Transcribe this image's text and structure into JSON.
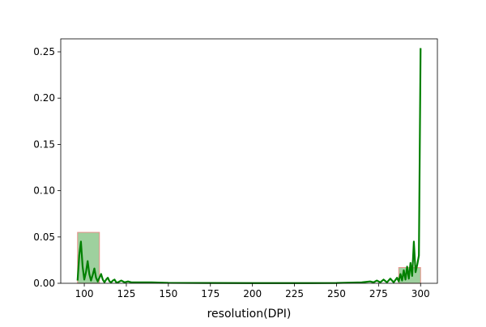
{
  "chart_data": {
    "type": "histogram",
    "title": "",
    "xlabel": "resolution(DPI)",
    "ylabel": "",
    "xlim": [
      86,
      310
    ],
    "ylim": [
      0,
      0.264
    ],
    "x_ticks": [
      100,
      125,
      150,
      175,
      200,
      225,
      250,
      275,
      300
    ],
    "x_tick_labels": [
      "100",
      "125",
      "150",
      "175",
      "200",
      "225",
      "250",
      "275",
      "300"
    ],
    "y_ticks": [
      0.0,
      0.05,
      0.1,
      0.15,
      0.2,
      0.25
    ],
    "y_tick_labels": [
      "0.00",
      "0.05",
      "0.10",
      "0.15",
      "0.20",
      "0.25"
    ],
    "grid": false,
    "bars": [
      {
        "x0": 96,
        "x1": 109,
        "height": 0.055
      },
      {
        "x0": 287,
        "x1": 300,
        "height": 0.017
      }
    ],
    "series": [
      {
        "kind": "kde-line",
        "x": [
          96,
          97,
          98,
          99,
          100,
          101,
          102,
          103,
          104,
          105,
          106,
          107,
          108,
          109,
          110,
          111,
          112,
          113,
          114,
          115,
          116,
          117,
          118,
          119,
          120,
          122,
          124,
          126,
          128,
          130,
          135,
          140,
          150,
          175,
          200,
          225,
          250,
          260,
          265,
          270,
          272,
          274,
          276,
          278,
          280,
          282,
          284,
          286,
          287,
          288,
          289,
          290,
          291,
          292,
          293,
          294,
          295,
          296,
          297,
          298,
          299,
          300
        ],
        "y": [
          0.003,
          0.03,
          0.045,
          0.018,
          0.004,
          0.012,
          0.024,
          0.01,
          0.003,
          0.009,
          0.016,
          0.006,
          0.002,
          0.006,
          0.01,
          0.004,
          0.001,
          0.004,
          0.006,
          0.002,
          0.001,
          0.003,
          0.004,
          0.001,
          0.001,
          0.003,
          0.001,
          0.002,
          0.001,
          0.001,
          0.001,
          0.001,
          0.0005,
          0.0003,
          0.0002,
          0.0002,
          0.0003,
          0.0008,
          0.001,
          0.002,
          0.001,
          0.003,
          0.001,
          0.004,
          0.001,
          0.005,
          0.001,
          0.006,
          0.002,
          0.01,
          0.003,
          0.014,
          0.004,
          0.018,
          0.005,
          0.022,
          0.008,
          0.045,
          0.012,
          0.02,
          0.03,
          0.254
        ]
      }
    ],
    "colors": {
      "bar_fill": "#9ed09e",
      "bar_edge": "#e8908a",
      "line": "#008000",
      "axis": "#000000",
      "background": "#ffffff"
    }
  }
}
